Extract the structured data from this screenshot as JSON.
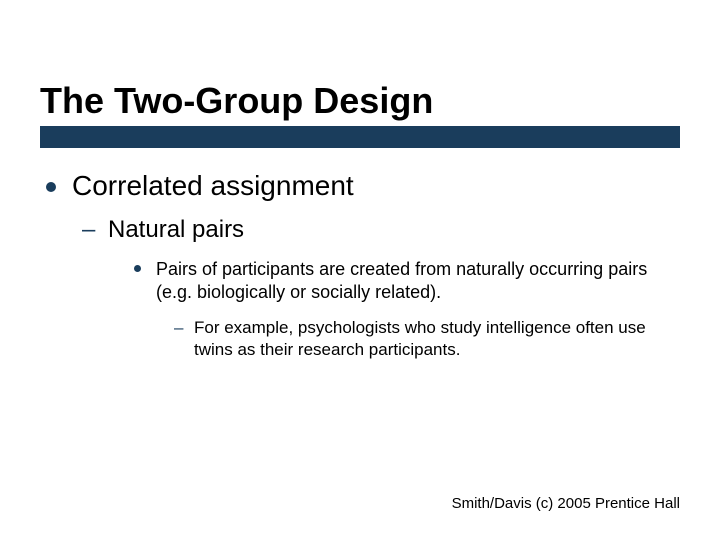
{
  "colors": {
    "accent_bar": "#1a3d5c",
    "bullet": "#1a3d5c",
    "text": "#000000",
    "background": "#ffffff"
  },
  "typography": {
    "title_fontsize": 36,
    "level1_fontsize": 28,
    "level2_fontsize": 24,
    "level3_fontsize": 18,
    "level4_fontsize": 17,
    "footer_fontsize": 15,
    "font_family": "Arial"
  },
  "title": "The Two-Group Design",
  "bullets": {
    "l1": "Correlated assignment",
    "l2": "Natural pairs",
    "l3": "Pairs of participants are created from naturally occurring pairs (e.g. biologically or socially related).",
    "l4": "For example, psychologists who study intelligence often use twins as their research participants."
  },
  "footer": "Smith/Davis (c) 2005 Prentice Hall"
}
